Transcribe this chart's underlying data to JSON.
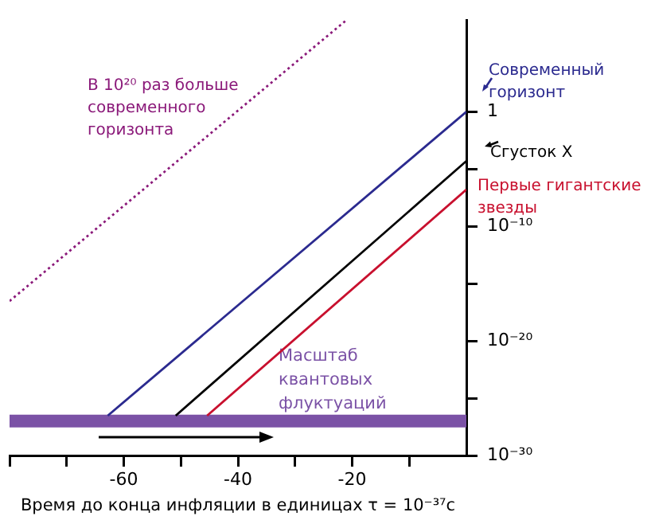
{
  "chart_data": {
    "type": "line",
    "xlabel": "Время до конца инфляции в единицах τ = 10⁻³⁷с",
    "log": "y",
    "grid": false,
    "legend": "right",
    "marker": "none",
    "xlim": [
      -80,
      0
    ],
    "xticks": [
      {
        "value": -80,
        "label": null
      },
      {
        "value": -70,
        "label": null
      },
      -60,
      {
        "value": -50,
        "label": null
      },
      -40,
      {
        "value": -30,
        "label": null
      },
      -20,
      {
        "value": -10,
        "label": null
      }
    ],
    "ylim": [
      1e-30,
      100000000.0
    ],
    "yticks": [
      {
        "value": 1e-30,
        "label": "10⁻³⁰"
      },
      {
        "value": 1e-25,
        "label": null
      },
      {
        "value": 1e-20,
        "label": "10⁻²⁰"
      },
      {
        "value": 1e-15,
        "label": null
      },
      {
        "value": 1e-10,
        "label": "10⁻¹⁰"
      },
      {
        "value": 1e-05,
        "label": null
      },
      1
    ],
    "series": [
      {
        "name": "Современный горизонт",
        "color": "#2b2a8f",
        "x": [
          -62.8,
          0
        ],
        "values": [
          3e-27,
          1
        ]
      },
      {
        "name": "Сгусток X",
        "color": "#000000",
        "x": [
          -50.9,
          0
        ],
        "values": [
          3e-27,
          5e-05
        ]
      },
      {
        "name": "Первые гигантские звезды",
        "color": "#c8102e",
        "x": [
          -45.4,
          0
        ],
        "values": [
          3e-27,
          1.6e-07
        ]
      },
      {
        "name": "В 10²⁰ раз больше современного горизонта",
        "color": "#8b1a7a",
        "x": [
          -80,
          -21
        ],
        "values": [
          3e-17,
          100000000.0
        ],
        "line_style": "dotted"
      }
    ],
    "ref_lines": [
      {
        "axis": "y",
        "value": 1e-27,
        "label": "Масштаб квантовых флуктуаций",
        "color": "#7b52a6"
      }
    ]
  }
}
